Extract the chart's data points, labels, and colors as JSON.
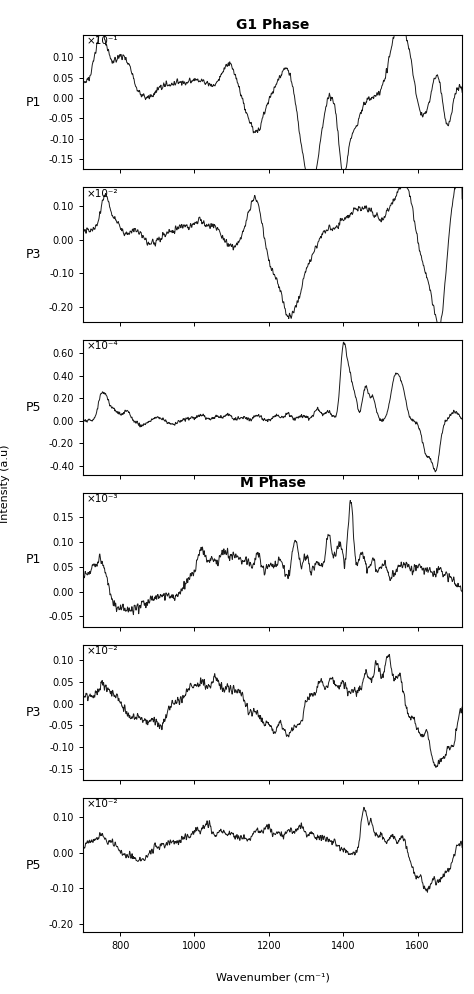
{
  "title_g1": "G1 Phase",
  "title_m": "M Phase",
  "xlabel": "Wavenumber (cm⁻¹)",
  "ylabel": "Intensity (a.u)",
  "xmin": 700,
  "xmax": 1720,
  "xticks": [
    800,
    1000,
    1200,
    1400,
    1600
  ],
  "panels": [
    {
      "label": "P1",
      "scale_str": "×10⁻¹",
      "ylim": [
        -0.175,
        0.155
      ],
      "yticks": [
        -0.15,
        -0.1,
        -0.05,
        0.0,
        0.05,
        0.1
      ],
      "title": "G1 Phase",
      "title_pos": "right"
    },
    {
      "label": "P3",
      "scale_str": "×10⁻²",
      "ylim": [
        -0.245,
        0.155
      ],
      "yticks": [
        -0.2,
        -0.1,
        0.0,
        0.1
      ],
      "title": null,
      "title_pos": null
    },
    {
      "label": "P5",
      "scale_str": "×10⁻⁴",
      "ylim": [
        -0.48,
        0.72
      ],
      "yticks": [
        -0.4,
        -0.2,
        0.0,
        0.2,
        0.4,
        0.6
      ],
      "title": null,
      "title_pos": null
    },
    {
      "label": "P1",
      "scale_str": "×10⁻³",
      "ylim": [
        -0.072,
        0.2
      ],
      "yticks": [
        -0.05,
        0.0,
        0.05,
        0.1,
        0.15
      ],
      "title": "M Phase",
      "title_pos": "right"
    },
    {
      "label": "P3",
      "scale_str": "×10⁻²",
      "ylim": [
        -0.175,
        0.135
      ],
      "yticks": [
        -0.15,
        -0.1,
        -0.05,
        0.0,
        0.05,
        0.1
      ],
      "title": null,
      "title_pos": null
    },
    {
      "label": "P5",
      "scale_str": "×10⁻²",
      "ylim": [
        -0.225,
        0.155
      ],
      "yticks": [
        -0.2,
        -0.1,
        0.0,
        0.1
      ],
      "title": null,
      "title_pos": null
    }
  ],
  "line_color": "#1a1a1a",
  "line_width": 0.7,
  "bg_color": "#ffffff",
  "tick_fontsize": 7,
  "label_fontsize": 8,
  "title_fontsize": 10
}
